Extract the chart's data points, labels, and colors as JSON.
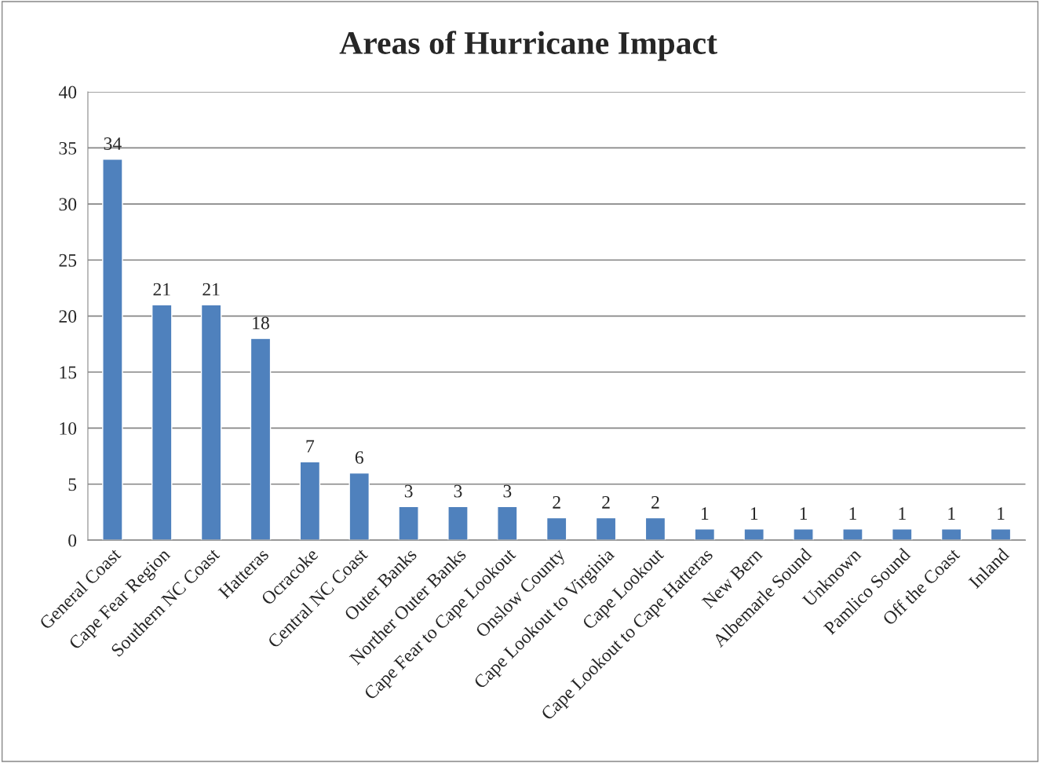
{
  "chart_data": {
    "type": "bar",
    "title": "Areas of Hurricane Impact",
    "categories": [
      "General Coast",
      "Cape Fear Region",
      "Southern NC Coast",
      "Hatteras",
      "Ocracoke",
      "Central NC Coast",
      "Outer Banks",
      "Norther Outer Banks",
      "Cape Fear to Cape Lookout",
      "Onslow County",
      "Cape Lookout to Virginia",
      "Cape Lookout",
      "Cape Lookout to Cape Hatteras",
      "New Bern",
      "Albemarle Sound",
      "Unknown",
      "Pamlico Sound",
      "Off the Coast",
      "Inland"
    ],
    "values": [
      34,
      21,
      21,
      18,
      7,
      6,
      3,
      3,
      3,
      2,
      2,
      2,
      1,
      1,
      1,
      1,
      1,
      1,
      1
    ],
    "color": "#4f81bd",
    "ylim": [
      0,
      40
    ],
    "yticks": [
      0,
      5,
      10,
      15,
      20,
      25,
      30,
      35,
      40
    ],
    "grid": "y",
    "data_labels": true,
    "legend": false
  }
}
